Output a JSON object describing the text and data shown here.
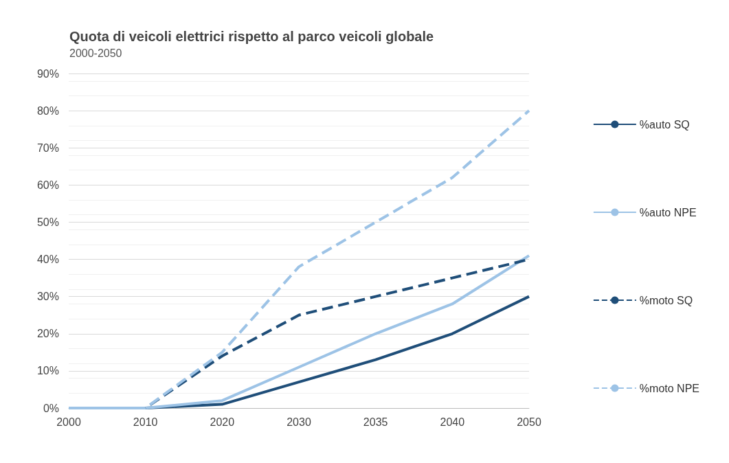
{
  "chart_data": {
    "type": "line",
    "title": "Quota di veicoli elettrici rispetto al parco veicoli globale",
    "subtitle": "2000-2050",
    "categories": [
      "2000",
      "2010",
      "2020",
      "2030",
      "2035",
      "2040",
      "2050"
    ],
    "series": [
      {
        "name": "%auto SQ",
        "color": "#1f4e79",
        "line_style": "solid",
        "values": [
          0,
          0,
          1,
          7,
          13,
          20,
          30
        ]
      },
      {
        "name": "%auto NPE",
        "color": "#9dc3e6",
        "line_style": "solid",
        "values": [
          0,
          0,
          2,
          11,
          20,
          28,
          41
        ]
      },
      {
        "name": "%moto SQ",
        "color": "#1f4e79",
        "line_style": "dashed",
        "values": [
          0,
          0,
          14,
          25,
          30,
          35,
          40
        ]
      },
      {
        "name": "%moto NPE",
        "color": "#9dc3e6",
        "line_style": "dashed",
        "values": [
          0,
          0,
          15,
          38,
          50,
          62,
          80
        ]
      }
    ],
    "ylim": [
      0,
      90
    ],
    "yticks": [
      {
        "value": 0,
        "label": "0%"
      },
      {
        "value": 10,
        "label": "10%"
      },
      {
        "value": 20,
        "label": "20%"
      },
      {
        "value": 30,
        "label": "30%"
      },
      {
        "value": 40,
        "label": "40%"
      },
      {
        "value": 50,
        "label": "50%"
      },
      {
        "value": 60,
        "label": "60%"
      },
      {
        "value": 70,
        "label": "70%"
      },
      {
        "value": 80,
        "label": "80%"
      },
      {
        "value": 90,
        "label": "90%"
      }
    ],
    "grid": "y",
    "legend": "right",
    "marker": "none"
  }
}
